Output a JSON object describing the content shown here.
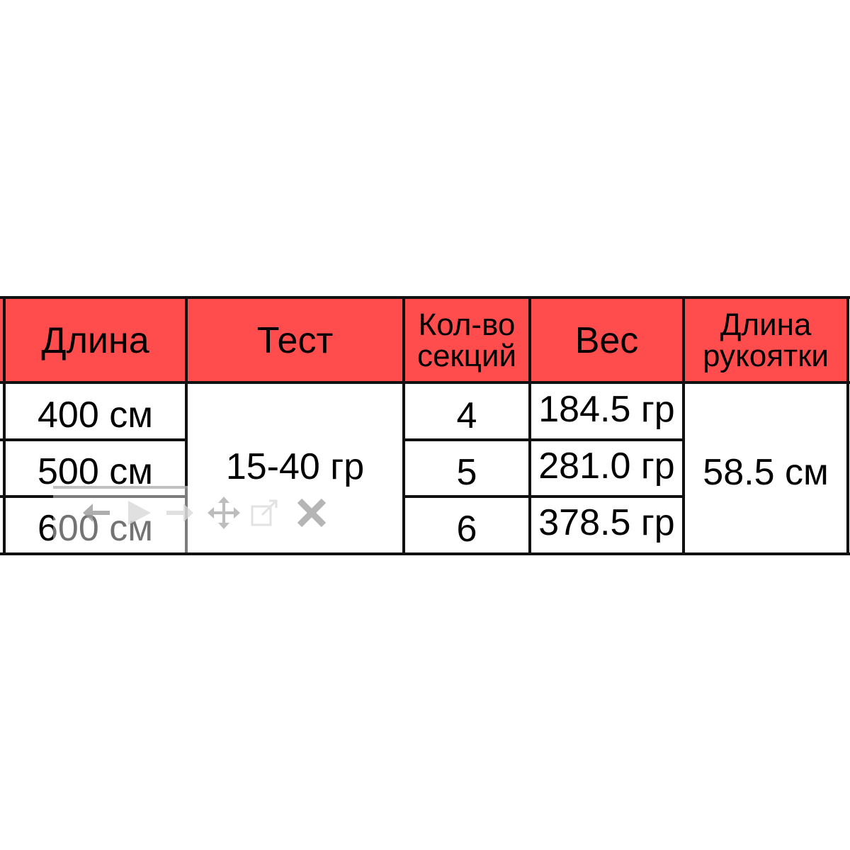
{
  "table": {
    "header_color": "#ff4d4d",
    "headers": [
      "Длина",
      "Тест",
      "Кол-во секций",
      "Вес",
      "Длина рукоятки"
    ],
    "header_lines": {
      "sections": [
        "Кол-во",
        "секций"
      ],
      "handle": [
        "Длина",
        "рукоятки"
      ]
    },
    "length": [
      "400 см",
      "500 см",
      "600 см"
    ],
    "test": "15-40 гр",
    "sections": [
      "4",
      "5",
      "6"
    ],
    "weight": [
      "184.5 гр",
      "281.0 гр",
      "378.5 гр"
    ],
    "handle_length": "58.5 см"
  },
  "overlay_toolbar": {
    "icons": [
      "arrow-left-icon",
      "play-icon",
      "arrow-right-icon",
      "move-icon",
      "open-external-icon",
      "close-icon"
    ]
  }
}
